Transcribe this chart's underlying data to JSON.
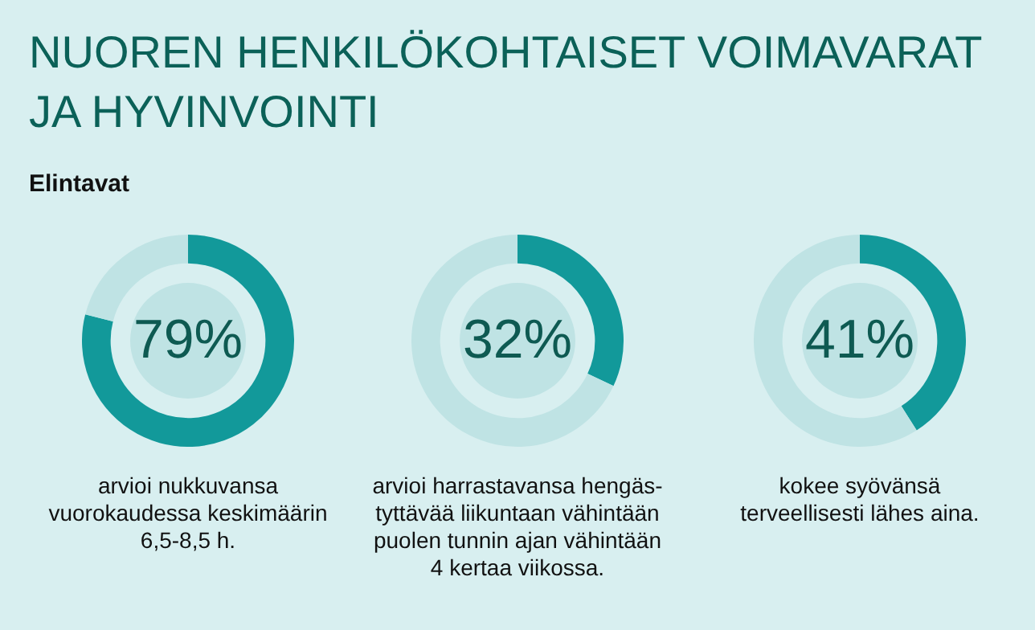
{
  "chart_data": [
    {
      "type": "donut",
      "title": "NUOREN HENKILÖKOHTAISET VOIMAVARAT JA HYVINVOINTI",
      "subtitle": "Elintavat",
      "categories": [
        null,
        null
      ],
      "values": [
        79,
        21
      ],
      "colors": [
        "#12999a",
        "#bfe3e4"
      ],
      "value_labels": [
        "79%",
        null
      ],
      "annotations": [
        "arvioi nukkuvansa\nvuorokaudessa keskimäärin\n6,5-8,5 h."
      ]
    },
    {
      "type": "donut",
      "categories": [
        null,
        null
      ],
      "values": [
        32,
        68
      ],
      "colors": [
        "#12999a",
        "#bfe3e4"
      ],
      "value_labels": [
        "32%",
        null
      ],
      "annotations": [
        "arvioi harrastavansa hengäs-\ntyttävää liikuntaan vähintään\npuolen tunnin ajan vähintään\n4 kertaa viikossa."
      ]
    },
    {
      "type": "donut",
      "categories": [
        null,
        null
      ],
      "values": [
        41,
        59
      ],
      "colors": [
        "#12999a",
        "#bfe3e4"
      ],
      "value_labels": [
        "41%",
        null
      ],
      "annotations": [
        "kokee syövänsä\nterveellisesti lähes aina."
      ]
    }
  ]
}
